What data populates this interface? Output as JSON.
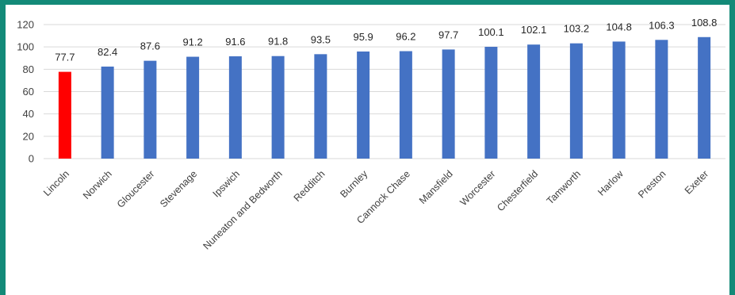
{
  "chart_data": {
    "type": "bar",
    "categories": [
      "Lincoln",
      "Norwich",
      "Gloucester",
      "Stevenage",
      "Ipswich",
      "Nuneaton and Bedworth",
      "Redditch",
      "Burnley",
      "Cannock Chase",
      "Mansfield",
      "Worcester",
      "Chesterfield",
      "Tamworth",
      "Harlow",
      "Preston",
      "Exeter"
    ],
    "values": [
      77.7,
      82.4,
      87.6,
      91.2,
      91.6,
      91.8,
      93.5,
      95.9,
      96.2,
      97.7,
      100.1,
      102.1,
      103.2,
      104.8,
      106.3,
      108.8
    ],
    "value_labels": [
      "77.7",
      "82.4",
      "87.6",
      "91.2",
      "91.6",
      "91.8",
      "93.5",
      "95.9",
      "96.2",
      "97.7",
      "100.1",
      "102.1",
      "103.2",
      "104.8",
      "106.3",
      "108.8"
    ],
    "yticks": [
      0,
      20,
      40,
      60,
      80,
      100,
      120
    ],
    "ylim": [
      0,
      120
    ],
    "title": "",
    "xlabel": "",
    "ylabel": "",
    "grid": true,
    "legend": "none",
    "colors": {
      "default": "#4472c4",
      "highlight": "#ff0000",
      "highlight_category": "Lincoln",
      "gridline": "#d9d9d9",
      "frame": "#138a78"
    }
  }
}
